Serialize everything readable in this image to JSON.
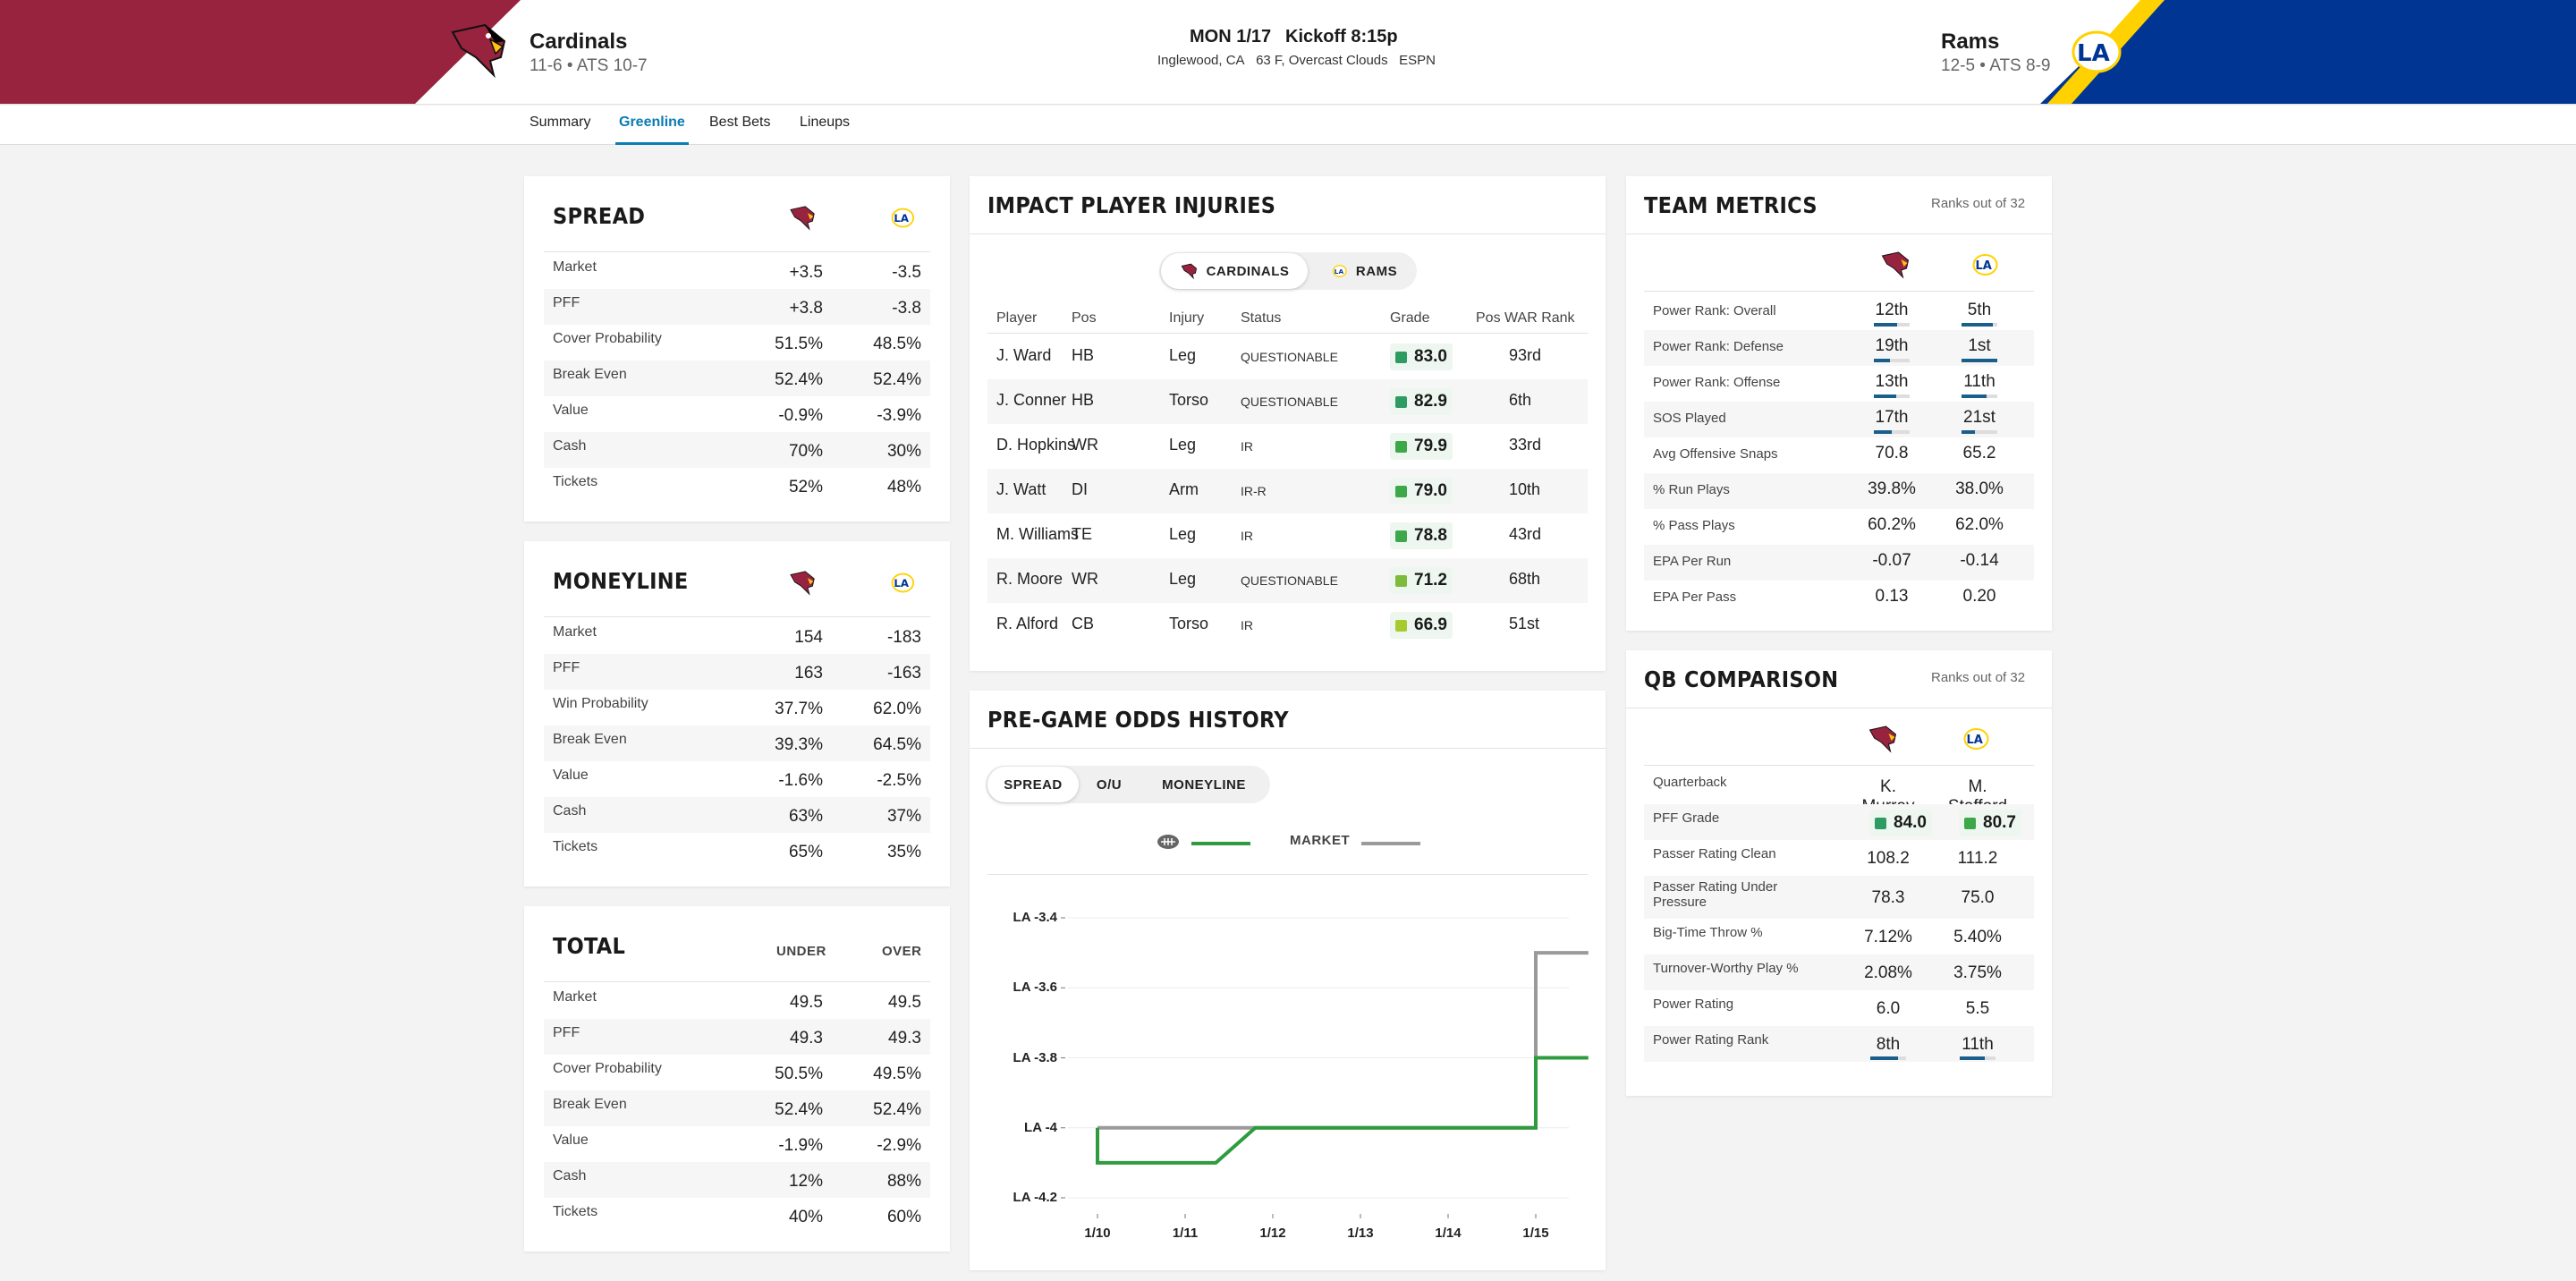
{
  "header": {
    "away": {
      "name": "Cardinals",
      "record": "11-6 • ATS 10-7"
    },
    "home": {
      "name": "Rams",
      "record": "12-5 • ATS 8-9"
    },
    "date": "MON 1/17",
    "kickoff": "Kickoff 8:15p",
    "location": "Inglewood, CA",
    "weather": "63 F, Overcast Clouds",
    "network": "ESPN"
  },
  "tabs": [
    "Summary",
    "Greenline",
    "Best Bets",
    "Lineups"
  ],
  "colors": {
    "cardinals": "#97233f",
    "rams": "#003594",
    "rams_gold": "#ffd100",
    "accent": "#0a7bb3",
    "pff_green": "#2e9b3e",
    "market_gray": "#9a9a9a"
  },
  "spread": {
    "title": "SPREAD",
    "rows": [
      {
        "label": "Market",
        "away": "+3.5",
        "home": "-3.5"
      },
      {
        "label": "PFF",
        "away": "+3.8",
        "home": "-3.8"
      },
      {
        "label": "Cover Probability",
        "away": "51.5%",
        "home": "48.5%"
      },
      {
        "label": "Break Even",
        "away": "52.4%",
        "home": "52.4%"
      },
      {
        "label": "Value",
        "away": "-0.9%",
        "home": "-3.9%"
      },
      {
        "label": "Cash",
        "away": "70%",
        "home": "30%"
      },
      {
        "label": "Tickets",
        "away": "52%",
        "home": "48%"
      }
    ]
  },
  "moneyline": {
    "title": "MONEYLINE",
    "rows": [
      {
        "label": "Market",
        "away": "154",
        "home": "-183"
      },
      {
        "label": "PFF",
        "away": "163",
        "home": "-163"
      },
      {
        "label": "Win Probability",
        "away": "37.7%",
        "home": "62.0%"
      },
      {
        "label": "Break Even",
        "away": "39.3%",
        "home": "64.5%"
      },
      {
        "label": "Value",
        "away": "-1.6%",
        "home": "-2.5%"
      },
      {
        "label": "Cash",
        "away": "63%",
        "home": "37%"
      },
      {
        "label": "Tickets",
        "away": "65%",
        "home": "35%"
      }
    ]
  },
  "total": {
    "title": "TOTAL",
    "col1": "UNDER",
    "col2": "OVER",
    "rows": [
      {
        "label": "Market",
        "away": "49.5",
        "home": "49.5"
      },
      {
        "label": "PFF",
        "away": "49.3",
        "home": "49.3"
      },
      {
        "label": "Cover Probability",
        "away": "50.5%",
        "home": "49.5%"
      },
      {
        "label": "Break Even",
        "away": "52.4%",
        "home": "52.4%"
      },
      {
        "label": "Value",
        "away": "-1.9%",
        "home": "-2.9%"
      },
      {
        "label": "Cash",
        "away": "12%",
        "home": "88%"
      },
      {
        "label": "Tickets",
        "away": "40%",
        "home": "60%"
      }
    ]
  },
  "injuries": {
    "title": "IMPACT PLAYER INJURIES",
    "toggle": [
      "CARDINALS",
      "RAMS"
    ],
    "columns": [
      "Player",
      "Pos",
      "Injury",
      "Status",
      "Grade",
      "Pos WAR Rank"
    ],
    "rows": [
      {
        "player": "J. Ward",
        "pos": "HB",
        "injury": "Leg",
        "status": "QUESTIONABLE",
        "grade": "83.0",
        "color": "#2e9b63",
        "rank": "93rd"
      },
      {
        "player": "J. Conner",
        "pos": "HB",
        "injury": "Torso",
        "status": "QUESTIONABLE",
        "grade": "82.9",
        "color": "#2e9b63",
        "rank": "6th"
      },
      {
        "player": "D. Hopkins",
        "pos": "WR",
        "injury": "Leg",
        "status": "IR",
        "grade": "79.9",
        "color": "#3ca84a",
        "rank": "33rd"
      },
      {
        "player": "J. Watt",
        "pos": "DI",
        "injury": "Arm",
        "status": "IR-R",
        "grade": "79.0",
        "color": "#3ca84a",
        "rank": "10th"
      },
      {
        "player": "M. Williams",
        "pos": "TE",
        "injury": "Leg",
        "status": "IR",
        "grade": "78.8",
        "color": "#3ca84a",
        "rank": "43rd"
      },
      {
        "player": "R. Moore",
        "pos": "WR",
        "injury": "Leg",
        "status": "QUESTIONABLE",
        "grade": "71.2",
        "color": "#7cbb3c",
        "rank": "68th"
      },
      {
        "player": "R. Alford",
        "pos": "CB",
        "injury": "Torso",
        "status": "IR",
        "grade": "66.9",
        "color": "#a8c92f",
        "rank": "51st"
      }
    ]
  },
  "odds": {
    "title": "PRE-GAME ODDS HISTORY",
    "toggle": [
      "SPREAD",
      "O/U",
      "MONEYLINE"
    ],
    "legend_market": "MARKET"
  },
  "chart_data": {
    "type": "line",
    "x_ticks": [
      "1/10",
      "1/11",
      "1/12",
      "1/13",
      "1/14",
      "1/15"
    ],
    "y_ticks": [
      "LA -3.4",
      "LA -3.6",
      "LA -3.8",
      "LA -4",
      "LA -4.2"
    ],
    "ylim": [
      -4.2,
      -3.4
    ],
    "series": [
      {
        "name": "MARKET",
        "color": "#9a9a9a",
        "points": [
          [
            0.0,
            -4.0
          ],
          [
            5.0,
            -4.0
          ],
          [
            5.0,
            -3.5
          ],
          [
            5.6,
            -3.5
          ]
        ]
      },
      {
        "color": "#2e9b3e",
        "points": [
          [
            0.0,
            -4.0
          ],
          [
            0.0,
            -4.1
          ],
          [
            1.35,
            -4.1
          ],
          [
            1.8,
            -4.0
          ],
          [
            5.0,
            -4.0
          ],
          [
            5.0,
            -3.8
          ],
          [
            5.6,
            -3.8
          ]
        ]
      }
    ]
  },
  "metrics": {
    "title": "TEAM METRICS",
    "sub": "Ranks out of 32",
    "rows": [
      {
        "label": "Power Rank: Overall",
        "away": "12th",
        "home": "5th",
        "rank": true,
        "af": 0.66,
        "hf": 0.88
      },
      {
        "label": "Power Rank: Defense",
        "away": "19th",
        "home": "1st",
        "rank": true,
        "af": 0.44,
        "hf": 1.0
      },
      {
        "label": "Power Rank: Offense",
        "away": "13th",
        "home": "11th",
        "rank": true,
        "af": 0.63,
        "hf": 0.69
      },
      {
        "label": "SOS Played",
        "away": "17th",
        "home": "21st",
        "rank": true,
        "af": 0.5,
        "hf": 0.38
      },
      {
        "label": "Avg Offensive Snaps",
        "away": "70.8",
        "home": "65.2"
      },
      {
        "label": "% Run Plays",
        "away": "39.8%",
        "home": "38.0%"
      },
      {
        "label": "% Pass Plays",
        "away": "60.2%",
        "home": "62.0%"
      },
      {
        "label": "EPA Per Run",
        "away": "-0.07",
        "home": "-0.14"
      },
      {
        "label": "EPA Per Pass",
        "away": "0.13",
        "home": "0.20"
      }
    ]
  },
  "qb": {
    "title": "QB COMPARISON",
    "sub": "Ranks out of 32",
    "rows": [
      {
        "label": "Quarterback",
        "away": "K. Murray",
        "home": "M. Stafford"
      },
      {
        "label": "PFF Grade",
        "away": "84.0",
        "home": "80.7",
        "grade": true
      },
      {
        "label": "Passer Rating Clean",
        "away": "108.2",
        "home": "111.2"
      },
      {
        "label": "Passer Rating Under Pressure",
        "away": "78.3",
        "home": "75.0"
      },
      {
        "label": "Big-Time Throw %",
        "away": "7.12%",
        "home": "5.40%"
      },
      {
        "label": "Turnover-Worthy Play %",
        "away": "2.08%",
        "home": "3.75%"
      },
      {
        "label": "Power Rating",
        "away": "6.0",
        "home": "5.5"
      },
      {
        "label": "Power Rating Rank",
        "away": "8th",
        "home": "11th",
        "rank": true,
        "af": 0.78,
        "hf": 0.69
      }
    ]
  }
}
